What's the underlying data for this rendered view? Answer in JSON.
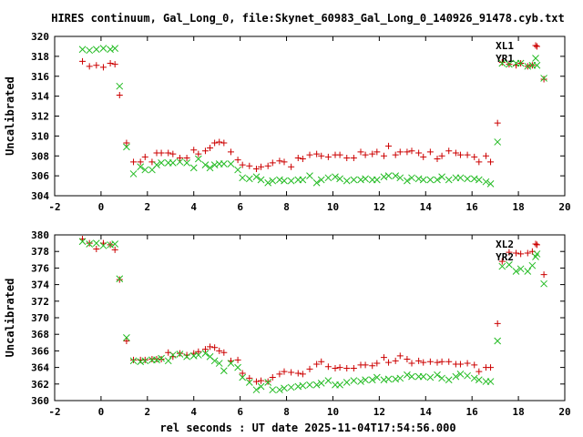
{
  "chart_data": {
    "type": "scatter",
    "title": "HIRES continuum, Gal_Long_0, file:Skynet_60983_Gal_Long_0_140926_91478.cyb.txt",
    "xlabel": "rel seconds : UT date 2025-11-04T17:54:56.000",
    "colors": {
      "red": "#cc0000",
      "green": "#22bb22"
    },
    "panels": [
      {
        "ylabel": "Uncalibrated",
        "xlim": [
          -2,
          20
        ],
        "ylim": [
          304,
          320
        ],
        "xticks": [
          "-2",
          "0",
          "2",
          "4",
          "6",
          "8",
          "10",
          "12",
          "14",
          "16",
          "18",
          "20"
        ],
        "yticks": [
          "304",
          "306",
          "308",
          "310",
          "312",
          "314",
          "316",
          "318",
          "320"
        ],
        "legend_position": "top-right",
        "series": [
          {
            "name": "XL1",
            "marker": "plus",
            "color": "#cc0000",
            "x": [
              -0.8,
              -0.5,
              -0.2,
              0.1,
              0.4,
              0.6,
              0.8,
              1.1,
              1.4,
              1.7,
              1.9,
              2.2,
              2.4,
              2.6,
              2.9,
              3.1,
              3.4,
              3.7,
              4.0,
              4.2,
              4.5,
              4.7,
              4.9,
              5.1,
              5.3,
              5.6,
              5.9,
              6.1,
              6.4,
              6.7,
              6.9,
              7.2,
              7.4,
              7.7,
              7.9,
              8.2,
              8.5,
              8.7,
              9.0,
              9.3,
              9.5,
              9.8,
              10.1,
              10.3,
              10.6,
              10.9,
              11.2,
              11.4,
              11.7,
              11.9,
              12.2,
              12.4,
              12.7,
              12.9,
              13.2,
              13.4,
              13.7,
              13.9,
              14.2,
              14.5,
              14.7,
              15.0,
              15.3,
              15.5,
              15.8,
              16.1,
              16.3,
              16.6,
              16.8,
              17.1,
              17.3,
              17.6,
              17.9,
              18.1,
              18.4,
              18.6,
              18.8,
              19.1
            ],
            "y": [
              317.5,
              317.0,
              317.1,
              316.9,
              317.3,
              317.2,
              314.1,
              309.3,
              307.4,
              307.4,
              307.9,
              307.4,
              308.3,
              308.3,
              308.3,
              308.2,
              307.8,
              307.8,
              308.6,
              308.2,
              308.5,
              308.8,
              309.3,
              309.4,
              309.3,
              308.4,
              307.6,
              307.1,
              307.0,
              306.7,
              306.9,
              307.0,
              307.3,
              307.5,
              307.4,
              306.9,
              307.8,
              307.7,
              308.1,
              308.2,
              308.0,
              307.9,
              308.1,
              308.1,
              307.8,
              307.8,
              308.4,
              308.1,
              308.2,
              308.4,
              308.0,
              309.0,
              308.1,
              308.4,
              308.4,
              308.5,
              308.3,
              307.9,
              308.4,
              307.7,
              308.0,
              308.5,
              308.3,
              308.1,
              308.1,
              307.9,
              307.4,
              308.0,
              307.4,
              311.3,
              317.4,
              317.2,
              317.1,
              317.3,
              317.0,
              317.1,
              319.0,
              315.7
            ]
          },
          {
            "name": "YR1",
            "marker": "cross",
            "color": "#22bb22",
            "x": [
              -0.8,
              -0.5,
              -0.2,
              0.1,
              0.4,
              0.6,
              0.8,
              1.1,
              1.4,
              1.7,
              1.9,
              2.2,
              2.4,
              2.6,
              2.9,
              3.1,
              3.4,
              3.7,
              4.0,
              4.2,
              4.5,
              4.7,
              4.9,
              5.1,
              5.3,
              5.6,
              5.9,
              6.1,
              6.4,
              6.7,
              6.9,
              7.2,
              7.4,
              7.7,
              7.9,
              8.2,
              8.5,
              8.7,
              9.0,
              9.3,
              9.5,
              9.8,
              10.1,
              10.3,
              10.6,
              10.9,
              11.2,
              11.4,
              11.7,
              11.9,
              12.2,
              12.4,
              12.7,
              12.9,
              13.2,
              13.4,
              13.7,
              13.9,
              14.2,
              14.5,
              14.7,
              15.0,
              15.3,
              15.5,
              15.8,
              16.1,
              16.3,
              16.6,
              16.8,
              17.1,
              17.3,
              17.6,
              17.9,
              18.1,
              18.4,
              18.6,
              18.8,
              19.1
            ],
            "y": [
              318.7,
              318.6,
              318.7,
              318.8,
              318.7,
              318.8,
              315.0,
              308.9,
              306.2,
              306.9,
              306.6,
              306.6,
              307.1,
              307.3,
              307.3,
              307.3,
              307.4,
              307.3,
              306.8,
              307.7,
              307.1,
              306.8,
              307.1,
              307.2,
              307.2,
              307.2,
              306.6,
              305.8,
              305.7,
              305.9,
              305.6,
              305.3,
              305.5,
              305.6,
              305.5,
              305.5,
              305.6,
              305.6,
              306.0,
              305.3,
              305.6,
              305.8,
              305.9,
              305.7,
              305.5,
              305.6,
              305.6,
              305.7,
              305.6,
              305.6,
              305.9,
              306.0,
              306.0,
              305.8,
              305.5,
              305.8,
              305.7,
              305.6,
              305.6,
              305.6,
              305.9,
              305.6,
              305.8,
              305.8,
              305.7,
              305.7,
              305.6,
              305.4,
              305.2,
              309.4,
              317.3,
              317.2,
              317.3,
              317.3,
              317.0,
              317.1,
              317.1,
              315.8
            ]
          }
        ]
      },
      {
        "ylabel": "Uncalibrated",
        "xlim": [
          -2,
          20
        ],
        "ylim": [
          360,
          380
        ],
        "xticks": [
          "-2",
          "0",
          "2",
          "4",
          "6",
          "8",
          "10",
          "12",
          "14",
          "16",
          "18",
          "20"
        ],
        "yticks": [
          "360",
          "362",
          "364",
          "366",
          "368",
          "370",
          "372",
          "374",
          "376",
          "378",
          "380"
        ],
        "legend_position": "top-right",
        "series": [
          {
            "name": "XL2",
            "marker": "plus",
            "color": "#cc0000",
            "x": [
              -0.8,
              -0.5,
              -0.2,
              0.1,
              0.4,
              0.6,
              0.8,
              1.1,
              1.4,
              1.7,
              1.9,
              2.2,
              2.4,
              2.6,
              2.9,
              3.1,
              3.4,
              3.7,
              4.0,
              4.2,
              4.5,
              4.7,
              4.9,
              5.1,
              5.3,
              5.6,
              5.9,
              6.1,
              6.4,
              6.7,
              6.9,
              7.2,
              7.4,
              7.7,
              7.9,
              8.2,
              8.5,
              8.7,
              9.0,
              9.3,
              9.5,
              9.8,
              10.1,
              10.3,
              10.6,
              10.9,
              11.2,
              11.4,
              11.7,
              11.9,
              12.2,
              12.4,
              12.7,
              12.9,
              13.2,
              13.4,
              13.7,
              13.9,
              14.2,
              14.5,
              14.7,
              15.0,
              15.3,
              15.5,
              15.8,
              16.1,
              16.3,
              16.6,
              16.8,
              17.1,
              17.3,
              17.6,
              17.9,
              18.1,
              18.4,
              18.6,
              18.8,
              19.1
            ],
            "y": [
              379.5,
              379.0,
              378.3,
              379.0,
              378.8,
              378.2,
              374.6,
              367.2,
              364.9,
              364.9,
              364.9,
              365.0,
              365.0,
              365.0,
              365.8,
              365.3,
              365.7,
              365.5,
              365.7,
              365.9,
              366.2,
              366.5,
              366.4,
              366.0,
              365.8,
              364.8,
              364.9,
              363.3,
              362.7,
              362.3,
              362.4,
              362.3,
              362.8,
              363.2,
              363.5,
              363.4,
              363.3,
              363.2,
              363.8,
              364.4,
              364.7,
              364.1,
              363.9,
              364.0,
              363.9,
              363.9,
              364.3,
              364.3,
              364.2,
              364.5,
              365.2,
              364.6,
              364.8,
              365.4,
              365.0,
              364.5,
              364.8,
              364.6,
              364.7,
              364.6,
              364.7,
              364.7,
              364.4,
              364.4,
              364.5,
              364.3,
              363.5,
              364.0,
              364.0,
              369.3,
              376.8,
              377.9,
              377.8,
              377.7,
              377.8,
              378.0,
              378.8,
              375.2
            ]
          },
          {
            "name": "YR2",
            "marker": "cross",
            "color": "#22bb22",
            "x": [
              -0.8,
              -0.5,
              -0.2,
              0.1,
              0.4,
              0.6,
              0.8,
              1.1,
              1.4,
              1.7,
              1.9,
              2.2,
              2.4,
              2.6,
              2.9,
              3.1,
              3.4,
              3.7,
              4.0,
              4.2,
              4.5,
              4.7,
              4.9,
              5.1,
              5.3,
              5.6,
              5.9,
              6.1,
              6.4,
              6.7,
              6.9,
              7.2,
              7.4,
              7.7,
              7.9,
              8.2,
              8.5,
              8.7,
              9.0,
              9.3,
              9.5,
              9.8,
              10.1,
              10.3,
              10.6,
              10.9,
              11.2,
              11.4,
              11.7,
              11.9,
              12.2,
              12.4,
              12.7,
              12.9,
              13.2,
              13.4,
              13.7,
              13.9,
              14.2,
              14.5,
              14.7,
              15.0,
              15.3,
              15.5,
              15.8,
              16.1,
              16.3,
              16.6,
              16.8,
              17.1,
              17.3,
              17.6,
              17.9,
              18.1,
              18.4,
              18.6,
              18.8,
              19.1
            ],
            "y": [
              379.2,
              378.9,
              379.0,
              378.7,
              378.8,
              378.9,
              374.7,
              367.6,
              364.8,
              364.7,
              364.8,
              364.9,
              364.9,
              365.1,
              364.8,
              365.5,
              365.6,
              365.3,
              365.4,
              365.5,
              365.7,
              365.3,
              364.8,
              364.5,
              363.6,
              364.5,
              364.0,
              362.8,
              362.2,
              361.3,
              361.7,
              362.2,
              361.3,
              361.3,
              361.5,
              361.6,
              361.7,
              361.8,
              361.9,
              361.9,
              362.1,
              362.4,
              361.9,
              361.9,
              362.2,
              362.4,
              362.3,
              362.5,
              362.5,
              362.8,
              362.5,
              362.6,
              362.6,
              362.7,
              363.1,
              362.9,
              362.9,
              362.9,
              362.8,
              363.1,
              362.7,
              362.5,
              362.9,
              363.2,
              363.0,
              362.7,
              362.5,
              362.3,
              362.3,
              367.2,
              376.2,
              376.4,
              375.6,
              375.9,
              375.6,
              376.3,
              377.7,
              374.1
            ]
          }
        ]
      }
    ]
  }
}
